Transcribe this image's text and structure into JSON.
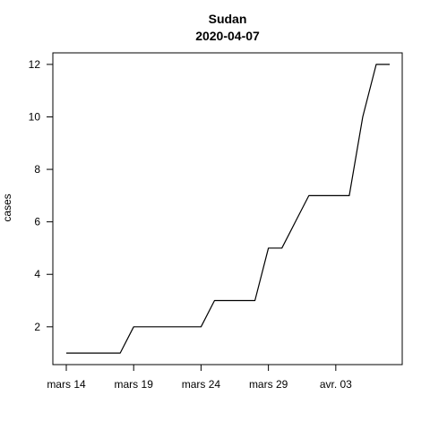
{
  "chart_data": {
    "type": "line",
    "title": "Sudan",
    "subtitle": "2020-04-07",
    "xlabel": "",
    "ylabel": "cases",
    "x": [
      "2020-03-14",
      "2020-03-15",
      "2020-03-16",
      "2020-03-17",
      "2020-03-18",
      "2020-03-19",
      "2020-03-20",
      "2020-03-21",
      "2020-03-22",
      "2020-03-23",
      "2020-03-24",
      "2020-03-25",
      "2020-03-26",
      "2020-03-27",
      "2020-03-28",
      "2020-03-29",
      "2020-03-30",
      "2020-03-31",
      "2020-04-01",
      "2020-04-02",
      "2020-04-03",
      "2020-04-04",
      "2020-04-05",
      "2020-04-06",
      "2020-04-07"
    ],
    "series": [
      {
        "values": [
          1,
          1,
          1,
          1,
          1,
          2,
          2,
          2,
          2,
          2,
          2,
          3,
          3,
          3,
          3,
          5,
          5,
          6,
          7,
          7,
          7,
          7,
          10,
          12,
          12
        ],
        "color": "#000000"
      }
    ],
    "xticks": [
      {
        "x": "2020-03-14",
        "label": "mars 14"
      },
      {
        "x": "2020-03-19",
        "label": "mars 19"
      },
      {
        "x": "2020-03-24",
        "label": "mars 24"
      },
      {
        "x": "2020-03-29",
        "label": "mars 29"
      },
      {
        "x": "2020-04-03",
        "label": "avr. 03"
      }
    ],
    "yticks": [
      2,
      4,
      6,
      8,
      10,
      12
    ],
    "ylim": [
      0.56,
      12.44
    ],
    "xlim": [
      "2020-03-14",
      "2020-04-07"
    ],
    "grid": false,
    "legend": "none"
  }
}
